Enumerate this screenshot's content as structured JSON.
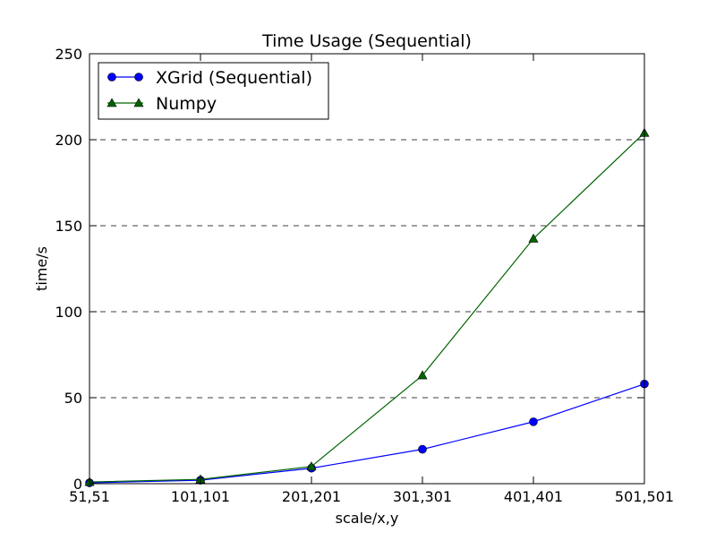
{
  "chart_data": {
    "type": "line",
    "title": "Time Usage (Sequential)",
    "xlabel": "scale/x,y",
    "ylabel": "time/s",
    "categories": [
      "51,51",
      "101,101",
      "201,201",
      "301,301",
      "401,401",
      "501,501"
    ],
    "ylim": [
      0,
      250
    ],
    "yticks": [
      0,
      50,
      100,
      150,
      200,
      250
    ],
    "grid": "y-dashed",
    "legend_position": "top-left",
    "series": [
      {
        "name": "XGrid (Sequential)",
        "color": "#0000ff",
        "marker": "circle",
        "values": [
          0.5,
          2,
          9,
          20,
          36,
          58
        ]
      },
      {
        "name": "Numpy",
        "color": "#006400",
        "marker": "triangle",
        "values": [
          1,
          2.5,
          10,
          63,
          142.5,
          204
        ]
      }
    ]
  }
}
